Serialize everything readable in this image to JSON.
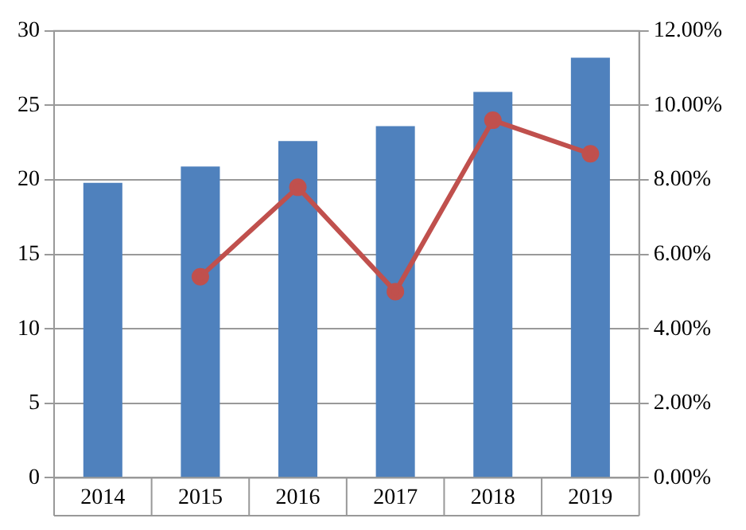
{
  "chart_data": {
    "type": "bar",
    "categories": [
      "2014",
      "2015",
      "2016",
      "2017",
      "2018",
      "2019"
    ],
    "series": [
      {
        "color": "#4f81bd",
        "values": [
          19.8,
          20.9,
          22.6,
          23.6,
          25.9,
          28.2
        ]
      },
      {
        "type": "line",
        "axis": "y2",
        "color": "#c0504d",
        "values": [
          null,
          5.4,
          7.8,
          5.0,
          9.6,
          8.7
        ]
      }
    ],
    "ylim": [
      0,
      30
    ],
    "yticks": [
      0,
      5,
      10,
      15,
      20,
      25,
      30
    ],
    "y2lim": [
      0,
      12
    ],
    "y2ticks": [
      {
        "value": 0,
        "label": "0.00%"
      },
      {
        "value": 2,
        "label": "2.00%"
      },
      {
        "value": 4,
        "label": "4.00%"
      },
      {
        "value": 6,
        "label": "6.00%"
      },
      {
        "value": 8,
        "label": "8.00%"
      },
      {
        "value": 10,
        "label": "10.00%"
      },
      {
        "value": 12,
        "label": "12.00%"
      }
    ],
    "grid": "y",
    "marker": "circle",
    "line_style": "solid"
  }
}
